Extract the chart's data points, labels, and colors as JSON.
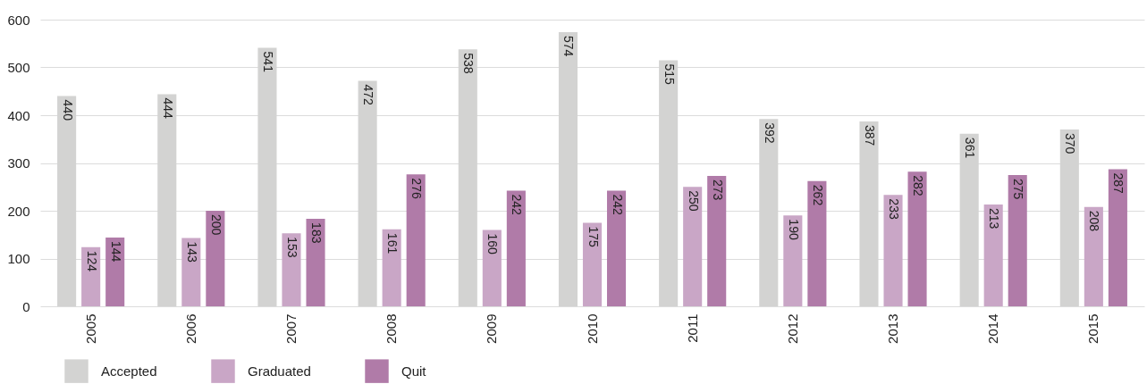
{
  "chart_data": {
    "type": "bar",
    "categories": [
      "2005",
      "2006",
      "2007",
      "2008",
      "2009",
      "2010",
      "2011",
      "2012",
      "2013",
      "2014",
      "2015"
    ],
    "series": [
      {
        "name": "Accepted",
        "color": "#d3d3d2",
        "values": [
          440,
          444,
          541,
          472,
          538,
          574,
          515,
          392,
          387,
          361,
          370
        ]
      },
      {
        "name": "Graduated",
        "color": "#c9a6c6",
        "values": [
          124,
          143,
          153,
          161,
          160,
          175,
          250,
          190,
          233,
          213,
          208
        ]
      },
      {
        "name": "Quit",
        "color": "#b07ba8",
        "values": [
          144,
          200,
          183,
          276,
          242,
          242,
          273,
          262,
          282,
          275,
          287
        ]
      }
    ],
    "ylim": [
      0,
      600
    ],
    "yticks": [
      0,
      100,
      200,
      300,
      400,
      500,
      600
    ],
    "grid": "y",
    "legend": "bottom left",
    "data_labels": true
  }
}
